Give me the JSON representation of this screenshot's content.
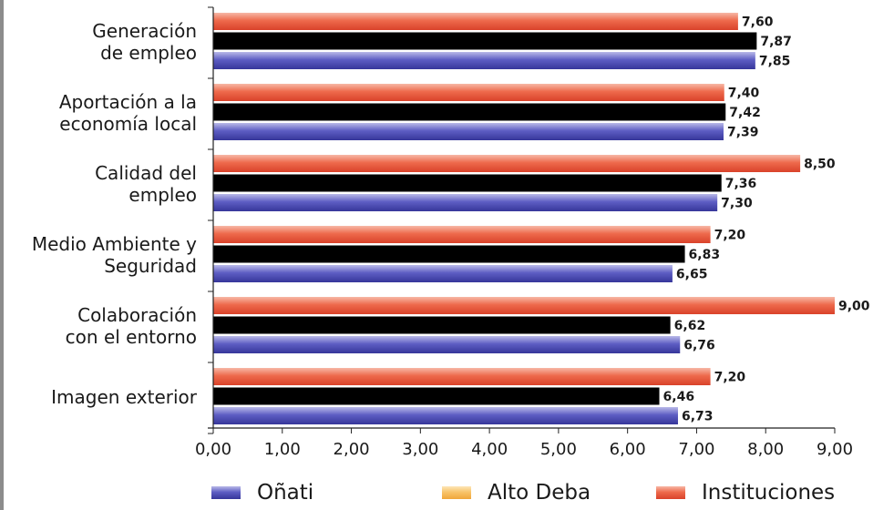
{
  "chart_data": {
    "type": "bar",
    "orientation": "horizontal",
    "categories": [
      [
        "Generación",
        "de empleo"
      ],
      [
        "Aportación a la",
        "economía local"
      ],
      [
        "Calidad del",
        "empleo"
      ],
      [
        "Medio Ambiente y",
        "Seguridad"
      ],
      [
        "Colaboración",
        "con el entorno"
      ],
      [
        "Imagen exterior"
      ]
    ],
    "series": [
      {
        "name": "Instituciones",
        "color": "#e8553a",
        "values": [
          7.6,
          7.4,
          8.5,
          7.2,
          9.0,
          7.2
        ],
        "labels": [
          "7,60",
          "7,40",
          "8,50",
          "7,20",
          "9,00",
          "7,20"
        ]
      },
      {
        "name": "Alto Deba",
        "color": "#f6b54f",
        "values": [
          7.87,
          7.42,
          7.36,
          6.83,
          6.62,
          6.46
        ],
        "labels": [
          "7,87",
          "7,42",
          "7,36",
          "6,83",
          "6,62",
          "6,46"
        ]
      },
      {
        "name": "Oñati",
        "color": "#4a4ab0",
        "values": [
          7.85,
          7.39,
          7.3,
          6.65,
          6.76,
          6.73
        ],
        "labels": [
          "7,85",
          "7,39",
          "7,30",
          "6,65",
          "6,76",
          "6,73"
        ]
      }
    ],
    "xlim": [
      0,
      9
    ],
    "xticks": [
      0,
      1,
      2,
      3,
      4,
      5,
      6,
      7,
      8,
      9
    ],
    "xtick_labels": [
      "0,00",
      "1,00",
      "2,00",
      "3,00",
      "4,00",
      "5,00",
      "6,00",
      "7,00",
      "8,00",
      "9,00"
    ],
    "title": "",
    "xlabel": "",
    "ylabel": "",
    "grid": false,
    "legend_position": "bottom"
  },
  "legend": [
    {
      "name": "Oñati",
      "color": "#4a4ab0"
    },
    {
      "name": "Alto Deba",
      "color": "#f6b54f"
    },
    {
      "name": "Instituciones",
      "color": "#e8553a"
    }
  ]
}
